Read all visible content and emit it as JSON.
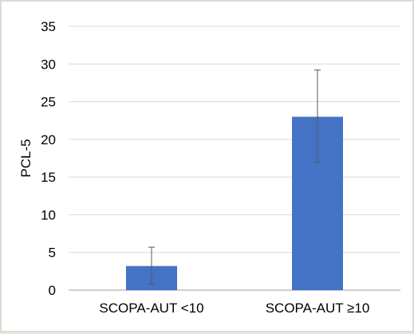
{
  "chart_data": {
    "type": "bar",
    "title": "",
    "xlabel": "",
    "ylabel": "PCL-5",
    "categories": [
      "SCOPA-AUT <10",
      "SCOPA-AUT ≥10"
    ],
    "values": [
      3.2,
      23.0
    ],
    "error_bars": [
      {
        "low": 0.8,
        "high": 5.7
      },
      {
        "low": 17.0,
        "high": 29.2
      }
    ],
    "ylim": [
      0,
      35
    ],
    "yticks": [
      0,
      5,
      10,
      15,
      20,
      25,
      30,
      35
    ],
    "grid": true,
    "legend": "none",
    "colors": {
      "bar": "#4472c4",
      "error_bar": "#595959",
      "grid": "#d9d9d9",
      "axis": "#bfbfbf"
    }
  }
}
